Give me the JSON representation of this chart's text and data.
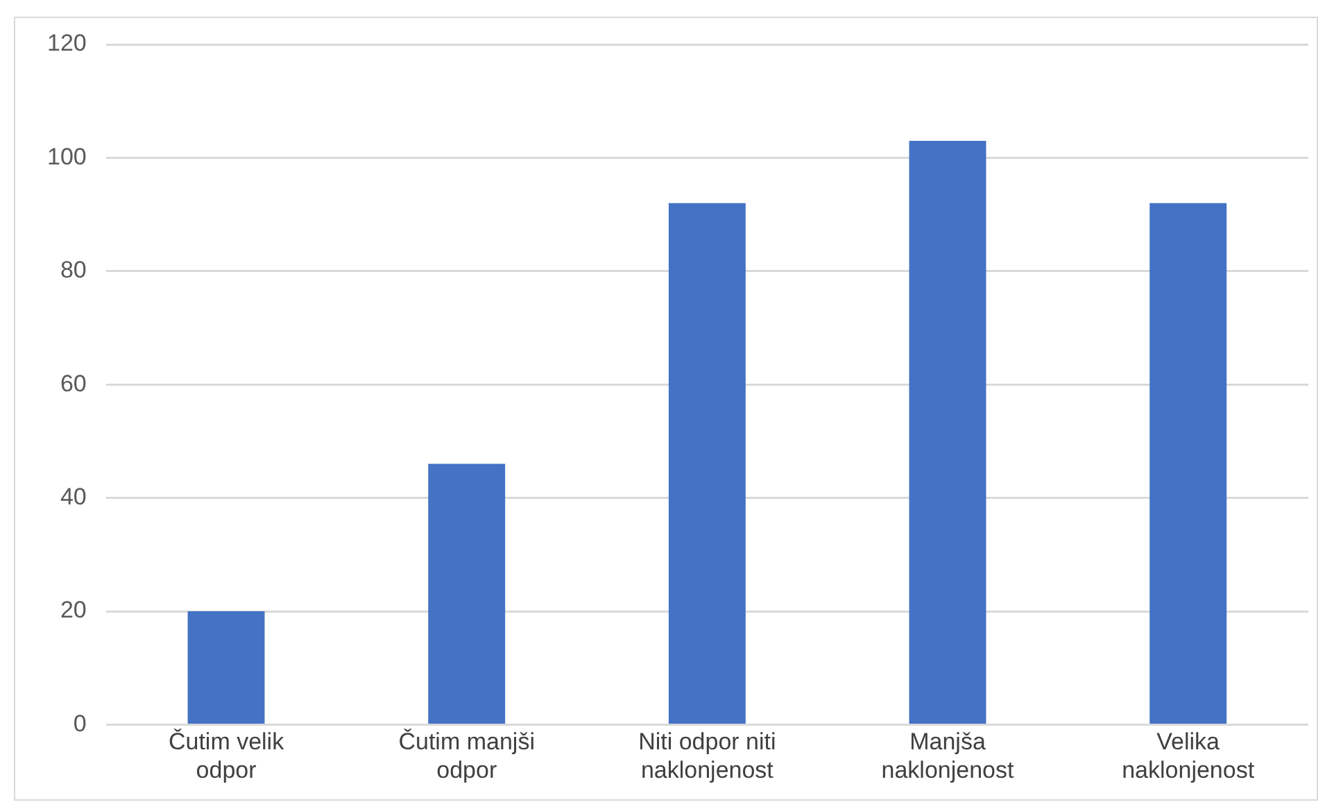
{
  "chart_data": {
    "type": "bar",
    "categories": [
      "Čutim velik odpor",
      "Čutim manjši odpor",
      "Niti odpor niti naklonjenost",
      "Manjša naklonjenost",
      "Velika naklonjenost"
    ],
    "values": [
      20,
      46,
      92,
      103,
      92
    ],
    "color": "#4472c4",
    "ylim": [
      0,
      120
    ],
    "yticks": [
      0,
      20,
      40,
      60,
      80,
      100,
      120
    ],
    "grid": "y"
  }
}
